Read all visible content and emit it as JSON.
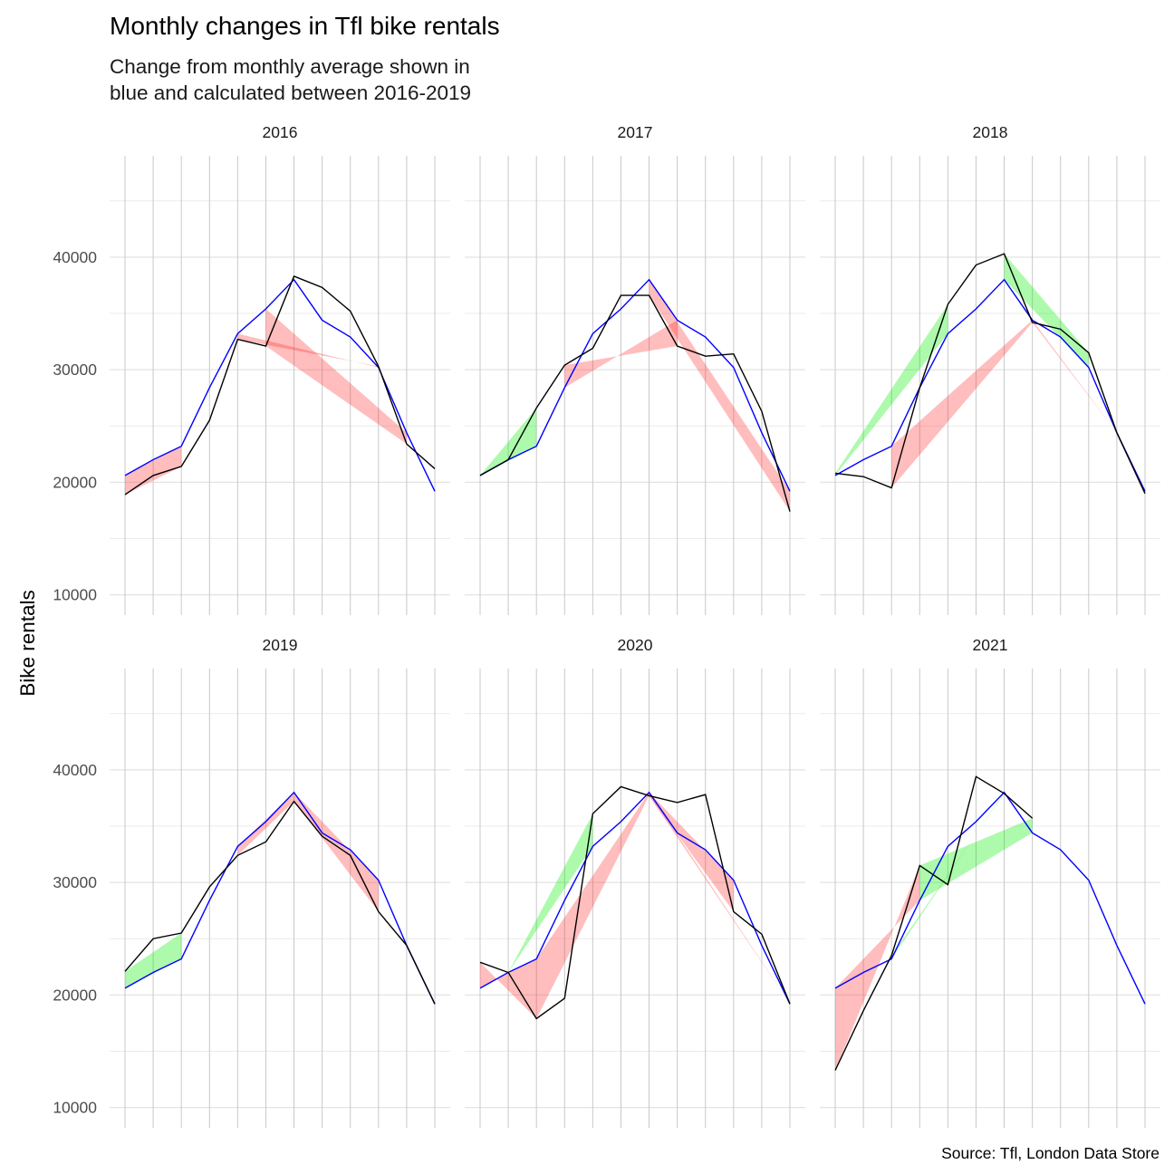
{
  "chart_data": {
    "type": "area",
    "title": "Monthly changes in Tfl bike rentals",
    "subtitle": [
      "Change from monthly average shown in",
      "blue and calculated between 2016-2019"
    ],
    "xlabel": "",
    "ylabel": "Bike rentals",
    "caption": "Source: Tfl, London Data Store",
    "ylim": [
      8200,
      49000
    ],
    "y_ticks": [
      10000,
      20000,
      30000,
      40000
    ],
    "x_months": [
      1,
      12
    ],
    "grid": true,
    "colors": {
      "average_line": "#0000ff",
      "actual_line": "#000000",
      "above_average_fill": "#00ee00",
      "below_average_fill": "#ff3333",
      "grid_major": "#c8c8c8",
      "grid_minor": "#ebebeb"
    },
    "monthly_average": [
      20600,
      22000,
      23200,
      28400,
      33200,
      35400,
      38000,
      34400,
      32900,
      30200,
      24400,
      19200
    ],
    "panels": [
      {
        "year": "2016",
        "actual": [
          18900,
          20600,
          21400,
          25500,
          32700,
          32100,
          38300,
          37300,
          35200,
          30300,
          23400,
          21200
        ],
        "shade_pairs": [
          [
            1,
            3
          ],
          [
            5,
            10
          ],
          [
            6,
            11
          ]
        ]
      },
      {
        "year": "2017",
        "actual": [
          20600,
          22000,
          26600,
          30400,
          31900,
          36600,
          36600,
          32100,
          31200,
          31400,
          26300,
          17400
        ],
        "shade_pairs": [
          [
            1,
            3
          ],
          [
            4,
            8
          ],
          [
            7,
            12
          ]
        ]
      },
      {
        "year": "2018",
        "actual": [
          20800,
          20500,
          19500,
          28400,
          35800,
          39300,
          40300,
          34200,
          33600,
          31500,
          24400,
          19000
        ],
        "shade_pairs": [
          [
            1,
            5
          ],
          [
            3,
            8
          ],
          [
            7,
            10
          ],
          [
            8,
            11
          ]
        ]
      },
      {
        "year": "2019",
        "actual": [
          22100,
          25000,
          25500,
          29600,
          32400,
          33600,
          37200,
          34100,
          32400,
          27400,
          24400,
          19200
        ],
        "shade_pairs": [
          [
            1,
            3
          ],
          [
            5,
            7
          ],
          [
            7,
            10
          ]
        ]
      },
      {
        "year": "2020",
        "actual": [
          22900,
          22000,
          17900,
          19700,
          36100,
          38500,
          37700,
          37100,
          37800,
          27400,
          25400,
          19200
        ],
        "shade_pairs": [
          [
            1,
            3
          ],
          [
            2,
            5
          ],
          [
            3,
            7
          ],
          [
            7,
            10
          ],
          [
            7,
            12
          ]
        ]
      },
      {
        "year": "2021",
        "actual": [
          13300,
          18600,
          23500,
          31500,
          29800,
          39400,
          37900,
          35700
        ],
        "shade_pairs": [
          [
            1,
            4
          ],
          [
            3,
            7
          ],
          [
            4,
            8
          ]
        ]
      }
    ]
  }
}
